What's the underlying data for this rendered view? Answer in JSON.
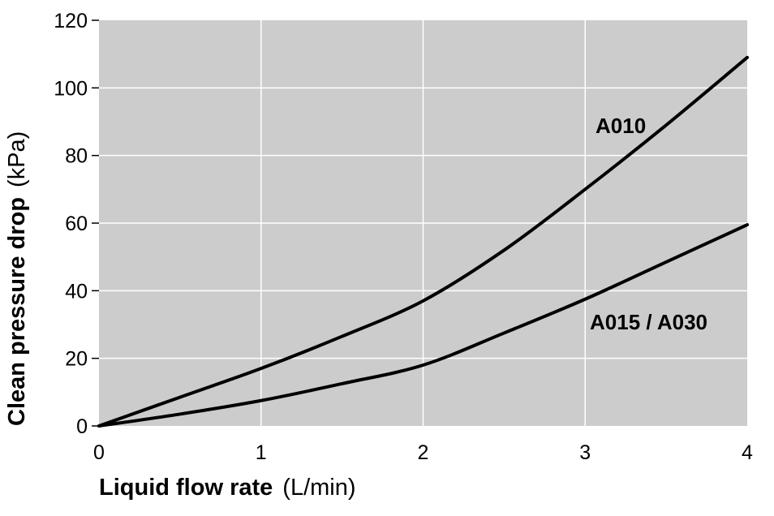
{
  "chart_data": {
    "type": "line",
    "xlabel": "Liquid flow rate",
    "xlabel_unit": "(L/min)",
    "ylabel": "Clean pressure drop",
    "ylabel_unit": "(kPa)",
    "xlim": [
      0,
      4
    ],
    "ylim": [
      0,
      120
    ],
    "x_ticks": [
      "0",
      "1",
      "2",
      "3",
      "4"
    ],
    "y_ticks": [
      "0",
      "20",
      "40",
      "60",
      "80",
      "100",
      "120"
    ],
    "grid": true,
    "colors": {
      "plot_background": "#cccccc",
      "grid": "#ffffff",
      "line": "#000000"
    },
    "series": [
      {
        "name": "A010",
        "x": [
          0,
          0.5,
          1,
          1.5,
          2,
          2.5,
          3,
          3.5,
          4
        ],
        "values": [
          0,
          8.5,
          17,
          26.5,
          37,
          52,
          70,
          89,
          109
        ]
      },
      {
        "name": "A015 / A030",
        "x": [
          0,
          0.5,
          1,
          1.5,
          2,
          2.5,
          3,
          3.5,
          4
        ],
        "values": [
          0,
          3.5,
          7.5,
          12.5,
          18,
          27.5,
          37.5,
          48.5,
          59.5
        ]
      }
    ]
  }
}
